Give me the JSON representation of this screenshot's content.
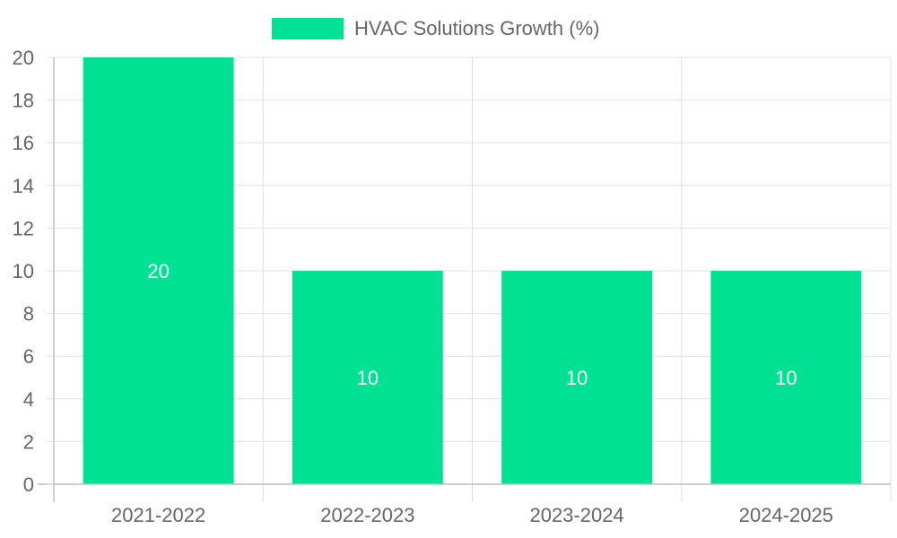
{
  "colors": {
    "bar": "#00e194",
    "grid": "#e0e0e0",
    "axis": "#bdbdbd",
    "text": "#666666",
    "data_label": "#ffffff"
  },
  "chart_data": {
    "type": "bar",
    "categories": [
      "2021-2022",
      "2022-2023",
      "2023-2024",
      "2024-2025"
    ],
    "series": [
      {
        "name": "HVAC Solutions Growth (%)",
        "values": [
          20,
          10,
          10,
          10
        ]
      }
    ],
    "data_labels": [
      "20",
      "10",
      "10",
      "10"
    ],
    "title": "",
    "xlabel": "",
    "ylabel": "",
    "ylim": [
      0,
      20
    ],
    "yticks": [
      0,
      2,
      4,
      6,
      8,
      10,
      12,
      14,
      16,
      18,
      20
    ],
    "ytick_labels": [
      "0",
      "2",
      "4",
      "6",
      "8",
      "10",
      "12",
      "14",
      "16",
      "18",
      "20"
    ],
    "grid": true,
    "legend_position": "top-center"
  }
}
